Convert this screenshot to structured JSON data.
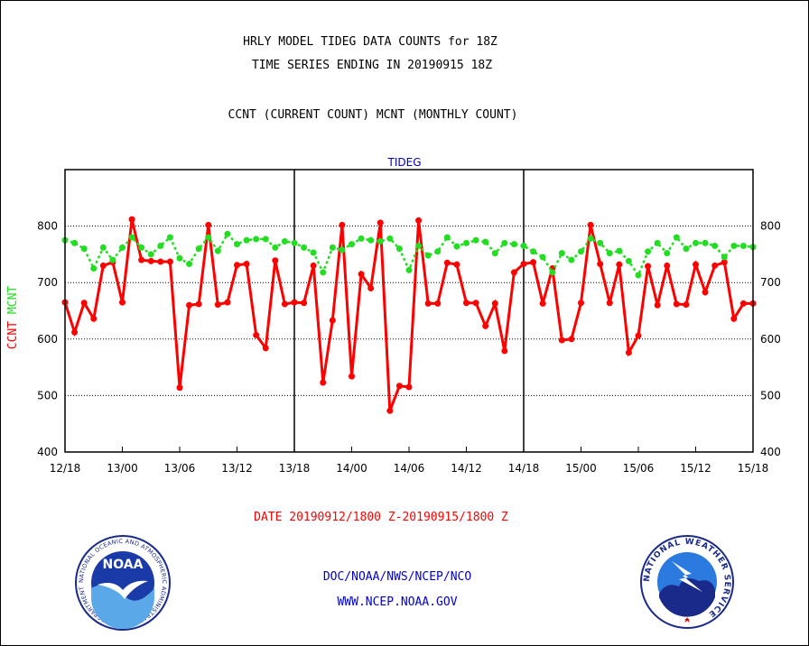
{
  "header": {
    "title_line1": "HRLY MODEL TIDEG DATA COUNTS for 18Z",
    "title_line2": "TIME SERIES ENDING IN 20190915 18Z",
    "subtitle": "CCNT (CURRENT COUNT) MCNT (MONTHLY COUNT)"
  },
  "footer": {
    "date_range": "DATE 20190912/1800 Z-20190915/1800 Z",
    "credit_line1": "DOC/NOAA/NWS/NCEP/NCO",
    "credit_line2": "WWW.NCEP.NOAA.GOV"
  },
  "logos": {
    "noaa_logo_text": "NOAA",
    "noaa_ring_text": "NATIONAL OCEANIC AND ATMOSPHERIC ADMINISTRATION · U.S. DEPARTMENT OF COMMERCE",
    "nws_ring_text": "NATIONAL WEATHER SERVICE"
  },
  "colors": {
    "ccnt": "#ff0000",
    "mcnt": "#22dd22",
    "plot_title": "#0000cc",
    "axis": "#000000"
  },
  "chart_data": {
    "type": "line",
    "title": "TIDEG",
    "ylabel_left_parts": [
      {
        "text": "CCNT",
        "color": "#ff0000"
      },
      {
        "text": "MCNT",
        "color": "#22dd22"
      }
    ],
    "x_tick_labels": [
      "12/18",
      "13/00",
      "13/06",
      "13/12",
      "13/18",
      "14/00",
      "14/06",
      "14/12",
      "14/18",
      "15/00",
      "15/06",
      "15/12",
      "15/18"
    ],
    "x_range_hours": [
      0,
      72
    ],
    "day_separators_hours": [
      24,
      48
    ],
    "ylim": [
      400,
      900
    ],
    "y_ticks": [
      400,
      500,
      600,
      700,
      800
    ],
    "grid": "horizontal dotted at y ticks",
    "series": [
      {
        "name": "CCNT",
        "color": "#ff0000",
        "style": "solid",
        "values": [
          665,
          612,
          664,
          636,
          730,
          736,
          665,
          812,
          740,
          738,
          737,
          737,
          514,
          660,
          662,
          802,
          661,
          665,
          731,
          733,
          607,
          584,
          739,
          662,
          665,
          664,
          730,
          523,
          633,
          802,
          534,
          715,
          690,
          806,
          473,
          517,
          515,
          810,
          663,
          663,
          735,
          732,
          664,
          664,
          623,
          663,
          579,
          718,
          733,
          736,
          663,
          725,
          598,
          600,
          664,
          802,
          733,
          664,
          732,
          576,
          606,
          729,
          660,
          730,
          662,
          661,
          732,
          683,
          730,
          736,
          636,
          663,
          663
        ]
      },
      {
        "name": "MCNT",
        "color": "#22dd22",
        "style": "dotted",
        "values": [
          775,
          770,
          760,
          725,
          762,
          740,
          762,
          780,
          762,
          750,
          765,
          780,
          743,
          733,
          760,
          780,
          756,
          786,
          768,
          775,
          777,
          777,
          762,
          773,
          770,
          762,
          753,
          718,
          762,
          758,
          768,
          778,
          775,
          773,
          778,
          760,
          722,
          765,
          748,
          755,
          780,
          764,
          770,
          775,
          772,
          752,
          770,
          768,
          765,
          755,
          745,
          718,
          752,
          740,
          755,
          778,
          770,
          752,
          756,
          738,
          713,
          755,
          770,
          752,
          780,
          760,
          770,
          770,
          765,
          745,
          765,
          765,
          763
        ]
      }
    ]
  }
}
